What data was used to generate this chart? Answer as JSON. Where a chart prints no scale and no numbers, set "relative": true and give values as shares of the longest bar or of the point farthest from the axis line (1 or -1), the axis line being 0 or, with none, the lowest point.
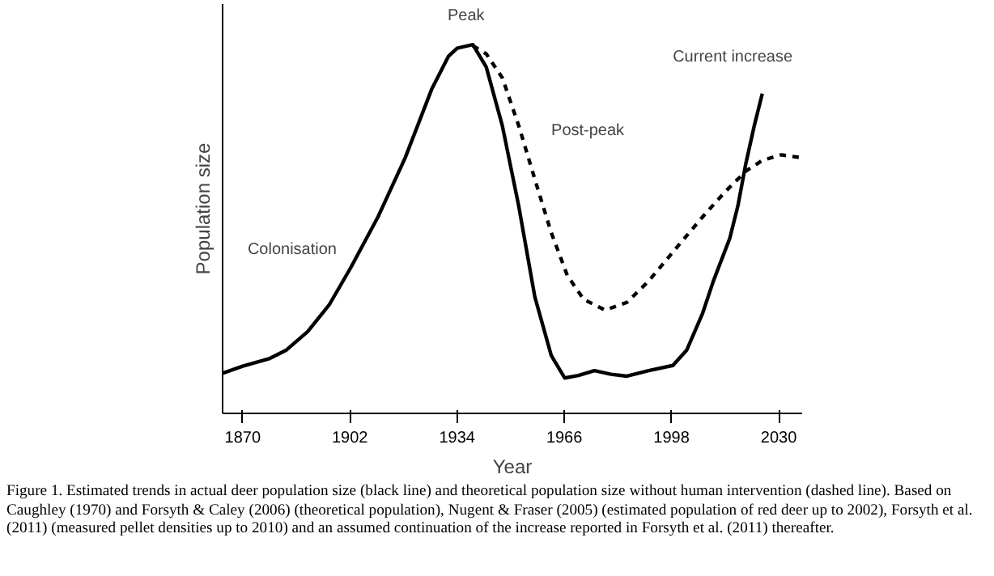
{
  "chart_data": {
    "type": "line",
    "relative": true,
    "xlabel": "Year",
    "ylabel": "Population size",
    "xlim": [
      1864,
      2037
    ],
    "xticks": [
      1870,
      1902,
      1934,
      1966,
      1998,
      2030
    ],
    "grid": false,
    "series": [
      {
        "color": "#000000",
        "line_style": "solid",
        "x": [
          1864.0,
          1870,
          1878.1,
          1882.9,
          1889.4,
          1895.8,
          1902.3,
          1910.4,
          1918.5,
          1926.5,
          1931.4,
          1934.0,
          1938.7,
          1942.7,
          1947.5,
          1952.4,
          1957.2,
          1962.1,
          1966.1,
          1970.2,
          1975.0,
          1979.9,
          1984.7,
          1991.2,
          1998.4,
          2002.5,
          2007.3,
          2010.5,
          2015.4,
          2017.8,
          2020.2,
          2022.7,
          2025.1
        ],
        "values": [
          0.109,
          0.128,
          0.149,
          0.171,
          0.222,
          0.294,
          0.396,
          0.533,
          0.693,
          0.881,
          0.968,
          0.99,
          1.0,
          0.939,
          0.78,
          0.562,
          0.316,
          0.157,
          0.096,
          0.103,
          0.116,
          0.106,
          0.101,
          0.116,
          0.13,
          0.171,
          0.272,
          0.359,
          0.475,
          0.562,
          0.678,
          0.78,
          0.867
        ]
      },
      {
        "color": "#000000",
        "line_style": "dashed",
        "x": [
          1938.7,
          1942.7,
          1947.5,
          1952.4,
          1957.2,
          1962.1,
          1966.9,
          1971.8,
          1978.2,
          1984.7,
          1991.2,
          1999.2,
          2007.3,
          2013.8,
          2020.2,
          2025.1,
          2030.7,
          2037.0
        ],
        "values": [
          0.997,
          0.975,
          0.91,
          0.78,
          0.635,
          0.49,
          0.374,
          0.309,
          0.28,
          0.301,
          0.359,
          0.446,
          0.533,
          0.599,
          0.657,
          0.686,
          0.701,
          0.693
        ]
      }
    ],
    "annotations": [
      "Peak",
      "Colonisation",
      "Post-peak",
      "Current increase",
      "Figure 1. Estimated trends in actual deer population size (black line) and theoretical population size without human intervention (dashed line). Based on Caughley (1970) and Forsyth & Caley (2006) (theoretical population), Nugent & Fraser (2005) (estimated population of red deer up to 2002), Forsyth et al. (2011) (measured pellet densities up to 2010) and an assumed continuation of the increase reported in Forsyth et al. (2011) thereafter."
    ]
  }
}
